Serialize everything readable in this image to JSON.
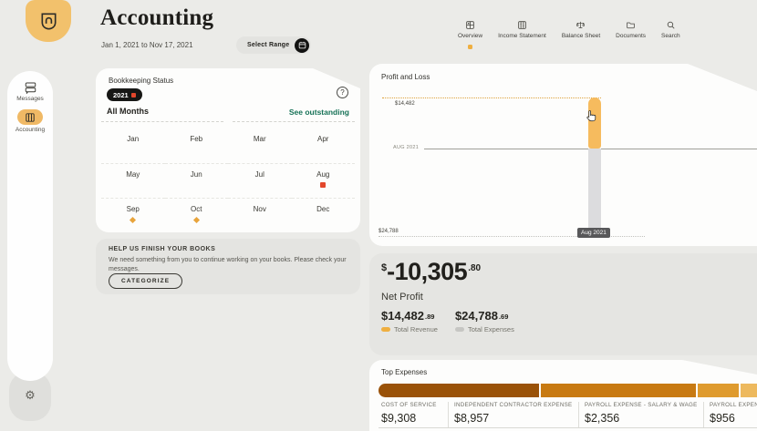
{
  "header": {
    "title": "Accounting",
    "date_range": "Jan 1, 2021 to Nov 17, 2021",
    "select_range_label": "Select Range"
  },
  "top_nav": {
    "items": [
      {
        "label": "Overview",
        "icon": "overview-grid-icon",
        "active": true
      },
      {
        "label": "Income Statement",
        "icon": "income-statement-icon",
        "active": false
      },
      {
        "label": "Balance Sheet",
        "icon": "balance-sheet-icon",
        "active": false
      },
      {
        "label": "Documents",
        "icon": "documents-folder-icon",
        "active": false
      },
      {
        "label": "Search",
        "icon": "search-icon",
        "active": false
      }
    ]
  },
  "sidebar": {
    "items": [
      {
        "label": "Messages",
        "icon": "messages-icon",
        "active": false
      },
      {
        "label": "Accounting",
        "icon": "accounting-icon",
        "active": true
      }
    ],
    "gear_glyph": "⚙"
  },
  "bookkeeping": {
    "title": "Bookkeeping Status",
    "year_badge": "2021",
    "all_months": "All Months",
    "see_outstanding": "See outstanding",
    "help_glyph": "?",
    "months": [
      {
        "label": "Jan",
        "status": "none"
      },
      {
        "label": "Feb",
        "status": "none"
      },
      {
        "label": "Mar",
        "status": "none"
      },
      {
        "label": "Apr",
        "status": "none"
      },
      {
        "label": "May",
        "status": "none"
      },
      {
        "label": "Jun",
        "status": "none"
      },
      {
        "label": "Jul",
        "status": "none"
      },
      {
        "label": "Aug",
        "status": "alert"
      },
      {
        "label": "Sep",
        "status": "pending"
      },
      {
        "label": "Oct",
        "status": "pending"
      },
      {
        "label": "Nov",
        "status": "none"
      },
      {
        "label": "Dec",
        "status": "none"
      }
    ]
  },
  "help_banner": {
    "title": "HELP US FINISH YOUR BOOKS",
    "body": "We need something from you to continue working on your books. Please check your messages.",
    "button": "CATEGORIZE"
  },
  "profit_loss": {
    "title": "Profit and Loss",
    "top_axis_label": "$14,482",
    "baseline_label": "AUG 2021",
    "bottom_axis_label": "$24,788",
    "tooltip": "Aug 2021"
  },
  "net_profit": {
    "currency": "$",
    "value_main": "-10,305",
    "value_cents": ".80",
    "label": "Net Profit",
    "revenue_main": "$14,482",
    "revenue_cents": ".89",
    "revenue_label": "Total Revenue",
    "expenses_main": "$24,788",
    "expenses_cents": ".69",
    "expenses_label": "Total Expenses"
  },
  "top_expenses": {
    "title": "Top Expenses",
    "items": [
      {
        "label": "COST OF SERVICE",
        "value": "$9,308"
      },
      {
        "label": "INDEPENDENT CONTRACTOR EXPENSE",
        "value": "$8,957"
      },
      {
        "label": "PAYROLL EXPENSE - SALARY & WAGE",
        "value": "$2,356"
      },
      {
        "label": "PAYROLL EXPENSE",
        "value": "$956"
      }
    ]
  },
  "colors": {
    "accent_orange": "#efaf41",
    "alert_red": "#e3472c",
    "pending_orange": "#e8a43c",
    "link_teal": "#177257",
    "revenue_bar": "#f6bb5e",
    "expenses_bar": "#dcdcde"
  },
  "chart_data": [
    {
      "type": "bar",
      "title": "Profit and Loss",
      "x": [
        "Aug 2021"
      ],
      "series": [
        {
          "name": "Total Revenue",
          "values": [
            14482.89
          ],
          "color": "#f6bb5e"
        },
        {
          "name": "Total Expenses",
          "values": [
            24788.69
          ],
          "color": "#dcdcde"
        }
      ],
      "net_profit": -10305.8,
      "annotations": [
        "$14,482 revenue reference line (dotted, orange)",
        "AUG 2021 baseline",
        "$24,788 expenses reference line (dotted, grey)",
        "Aug 2021 hover tooltip"
      ],
      "legend_position": "below-left",
      "grid": "dotted-reference-lines"
    },
    {
      "type": "bar",
      "title": "Top Expenses",
      "categories": [
        "COST OF SERVICE",
        "INDEPENDENT CONTRACTOR EXPENSE",
        "PAYROLL EXPENSE - SALARY & WAGE",
        "PAYROLL EXPENSE"
      ],
      "values": [
        9308,
        8957,
        2356,
        956
      ],
      "colors": [
        "#9a5208",
        "#c87a12",
        "#df9b2e",
        "#edb95e"
      ],
      "orientation": "horizontal-stacked"
    }
  ]
}
